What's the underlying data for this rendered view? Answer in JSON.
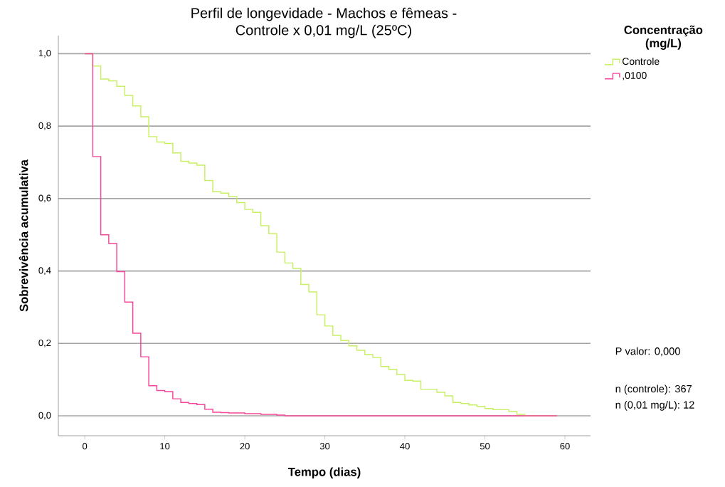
{
  "chart_data": {
    "type": "step",
    "title": "Perfil de longevidade - Machos e fêmeas -",
    "subtitle": "Controle x 0,01 mg/L (25ºC)",
    "xlabel": "Tempo (dias)",
    "ylabel": "Sobrevivência acumulativa",
    "legend_title": "Concentração (mg/L)",
    "legend": "top right",
    "grid": "y",
    "xlim": [
      -3.3,
      63.2
    ],
    "ylim": [
      -0.055,
      1.05
    ],
    "xticks": [
      0,
      10,
      20,
      30,
      40,
      50,
      60
    ],
    "yticks": [
      {
        "value": 0,
        "label": "0,0"
      },
      {
        "value": 0.2,
        "label": "0,2"
      },
      {
        "value": 0.4,
        "label": "0,4"
      },
      {
        "value": 0.6,
        "label": "0,6"
      },
      {
        "value": 0.8,
        "label": "0,8"
      },
      {
        "value": 1,
        "label": "1,0"
      }
    ],
    "series": [
      {
        "name": "Controle",
        "color": "#c8f064",
        "x": [
          0,
          1,
          2,
          3,
          4,
          5,
          6,
          7,
          8,
          9,
          10,
          11,
          12,
          13,
          14,
          15,
          16,
          17,
          18,
          19,
          20,
          21,
          22,
          23,
          24,
          25,
          26,
          27,
          28,
          29,
          30,
          31,
          32,
          33,
          34,
          35,
          36,
          37,
          38,
          39,
          40,
          41,
          42,
          44,
          45,
          46,
          47,
          48,
          49,
          50,
          51,
          53,
          54,
          55,
          59
        ],
        "values": [
          1.0,
          0.966,
          0.93,
          0.925,
          0.91,
          0.885,
          0.856,
          0.826,
          0.771,
          0.756,
          0.752,
          0.726,
          0.703,
          0.698,
          0.692,
          0.65,
          0.619,
          0.615,
          0.605,
          0.589,
          0.57,
          0.562,
          0.525,
          0.503,
          0.452,
          0.422,
          0.407,
          0.363,
          0.342,
          0.279,
          0.248,
          0.222,
          0.208,
          0.193,
          0.181,
          0.169,
          0.161,
          0.136,
          0.128,
          0.114,
          0.098,
          0.096,
          0.073,
          0.065,
          0.055,
          0.037,
          0.034,
          0.03,
          0.026,
          0.02,
          0.017,
          0.012,
          0.004,
          0.0,
          0.0
        ]
      },
      {
        "name": ",0100",
        "color": "#f5479b",
        "x": [
          0,
          1,
          2,
          3,
          4,
          5,
          6,
          7,
          8,
          9,
          10,
          11,
          12,
          13,
          14,
          15,
          16,
          17,
          18,
          20,
          22,
          24,
          25,
          59
        ],
        "values": [
          1.0,
          0.716,
          0.5,
          0.476,
          0.398,
          0.314,
          0.228,
          0.163,
          0.083,
          0.07,
          0.067,
          0.047,
          0.037,
          0.034,
          0.031,
          0.018,
          0.01,
          0.009,
          0.008,
          0.006,
          0.004,
          0.002,
          0.0,
          0.0
        ]
      }
    ],
    "annotations": [
      "P valor: 0,000",
      "n (controle): 367",
      "n (0,01 mg/L): 12"
    ]
  }
}
